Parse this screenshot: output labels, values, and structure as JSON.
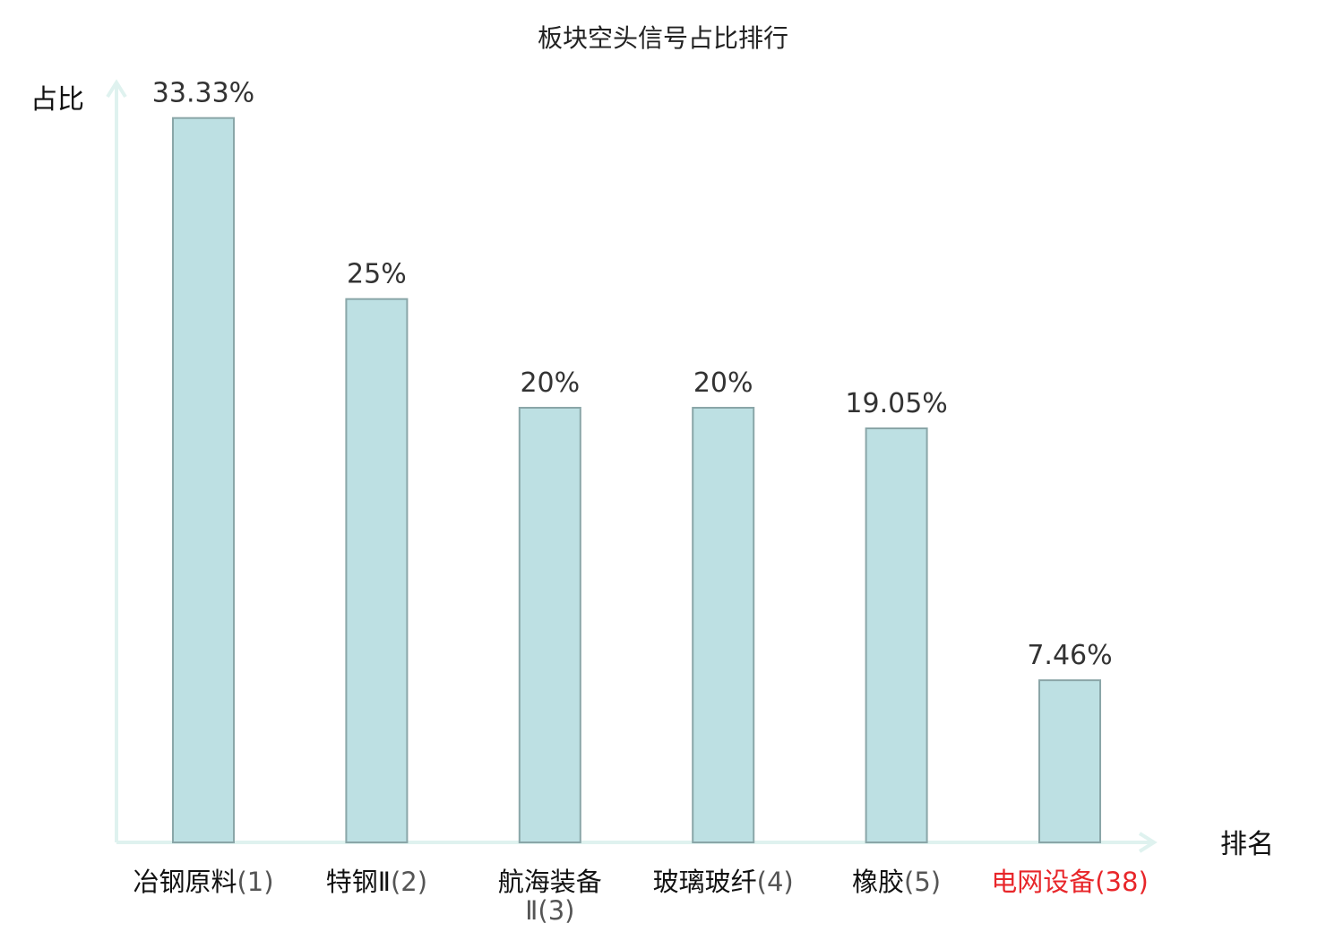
{
  "chart_data": {
    "type": "bar",
    "title": "板块空头信号占比排行",
    "xlabel": "排名",
    "ylabel": "占比",
    "categories": [
      {
        "name": "冶钢原料",
        "rank": "(1)",
        "highlight": false
      },
      {
        "name": "特钢Ⅱ",
        "rank": "(2)",
        "highlight": false
      },
      {
        "name": "航海装备",
        "name_line2": "Ⅱ(3)",
        "rank": "",
        "highlight": false
      },
      {
        "name": "玻璃玻纤",
        "rank": "(4)",
        "highlight": false
      },
      {
        "name": "橡胶",
        "rank": "(5)",
        "highlight": false
      },
      {
        "name": "电网设备",
        "rank": "(38)",
        "highlight": true
      }
    ],
    "values": [
      33.33,
      25,
      20,
      20,
      19.05,
      7.46
    ],
    "value_labels": [
      "33.33%",
      "25%",
      "20%",
      "20%",
      "19.05%",
      "7.46%"
    ],
    "ylim": [
      0,
      35
    ],
    "grid": false,
    "colors": {
      "bar_fill": "#bde0e3",
      "bar_stroke": "#8aa6a8",
      "axis": "#dff2ef",
      "highlight_text": "#e8262a",
      "rank_text": "#555555",
      "category_text": "#111111"
    }
  }
}
